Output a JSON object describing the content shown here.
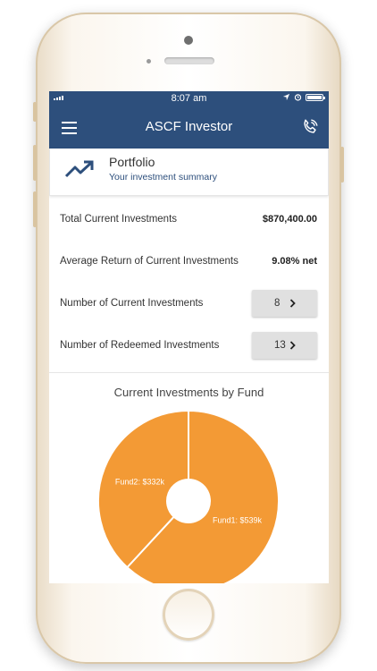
{
  "status_bar": {
    "time": "8:07 am"
  },
  "navbar": {
    "title": "ASCF Investor"
  },
  "portfolio": {
    "title": "Portfolio",
    "subtitle": "Your investment summary"
  },
  "summary": [
    {
      "label": "Total Current Investments",
      "value": "$870,400.00"
    },
    {
      "label": "Average Return of Current Investments",
      "value": "9.08% net"
    }
  ],
  "counts": [
    {
      "label": "Number of Current Investments",
      "value": "8"
    },
    {
      "label": "Number of Redeemed Investments",
      "value": "13"
    }
  ],
  "chart_data": {
    "type": "pie",
    "title": "Current Investments by Fund",
    "slices": [
      {
        "name": "Fund1",
        "label": "Fund1: $539k",
        "value": 539
      },
      {
        "name": "Fund2",
        "label": "Fund2: $332k",
        "value": 332
      }
    ],
    "color": "#f39a35"
  },
  "colors": {
    "primary": "#2d4f7c",
    "chart": "#f39a35"
  }
}
